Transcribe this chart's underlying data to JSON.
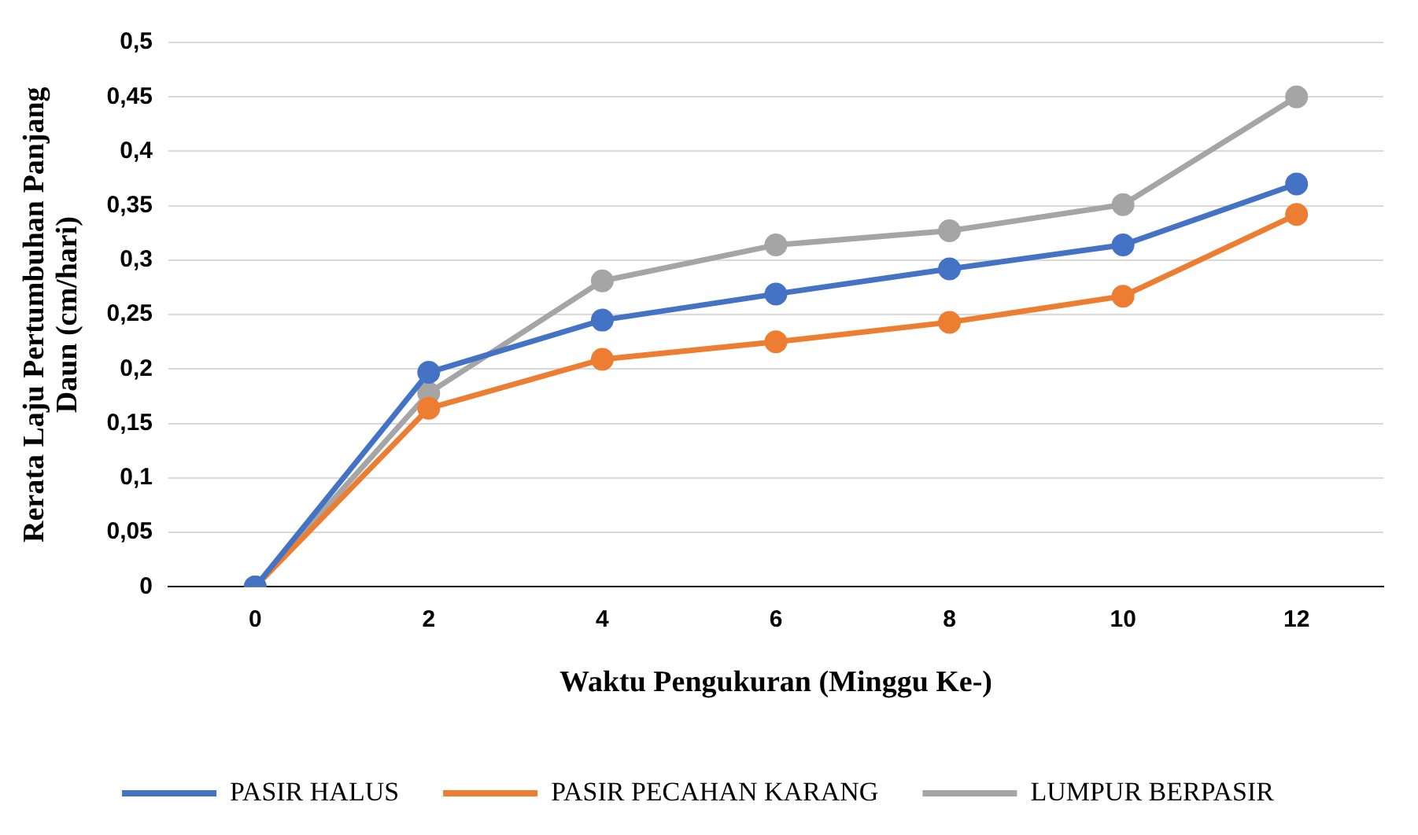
{
  "chart_data": {
    "type": "line",
    "xlabel": "Waktu Pengukuran (Minggu Ke-)",
    "ylabel": "Rerata Laju Pertumbuhan Panjang Daun (cm/hari)",
    "categories": [
      "0",
      "2",
      "4",
      "6",
      "8",
      "10",
      "12"
    ],
    "series": [
      {
        "name": "PASIR HALUS",
        "color": "#4472c4",
        "values": [
          0,
          0.197,
          0.245,
          0.269,
          0.292,
          0.314,
          0.37
        ]
      },
      {
        "name": "PASIR PECAHAN KARANG",
        "color": "#ed7d31",
        "values": [
          0,
          0.164,
          0.209,
          0.225,
          0.243,
          0.267,
          0.342
        ]
      },
      {
        "name": "LUMPUR BERPASIR",
        "color": "#a5a5a5",
        "values": [
          0,
          0.178,
          0.281,
          0.314,
          0.327,
          0.351,
          0.45
        ]
      }
    ],
    "ylim": [
      0,
      0.5
    ],
    "yticks": [
      0,
      {
        "value": 0.05,
        "label": "0,05"
      },
      {
        "value": 0.1,
        "label": "0,1"
      },
      {
        "value": 0.15,
        "label": "0,15"
      },
      {
        "value": 0.2,
        "label": "0,2"
      },
      {
        "value": 0.25,
        "label": "0,25"
      },
      {
        "value": 0.3,
        "label": "0,3"
      },
      {
        "value": 0.35,
        "label": "0,35"
      },
      {
        "value": 0.4,
        "label": "0,4"
      },
      {
        "value": 0.45,
        "label": "0,45"
      },
      {
        "value": 0.5,
        "label": "0,5"
      }
    ],
    "grid": "y",
    "legend": "bottom",
    "marker": "circle",
    "line_style": "solid"
  }
}
